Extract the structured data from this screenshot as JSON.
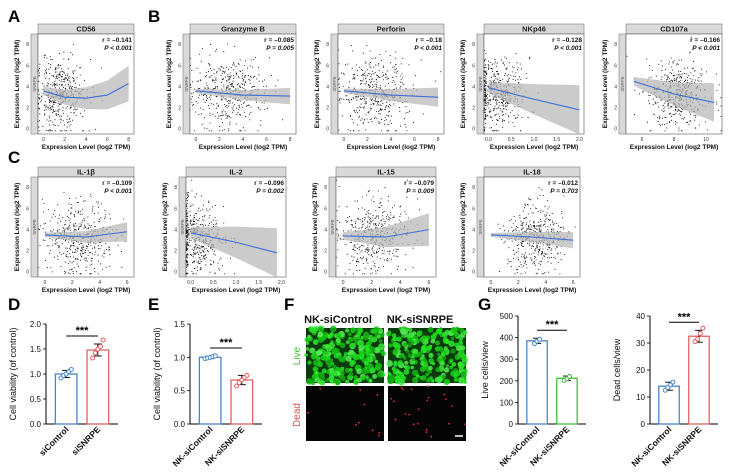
{
  "panel_labels": [
    "A",
    "B",
    "C",
    "D",
    "E",
    "F",
    "G"
  ],
  "scatter": {
    "xlabel": "Expression Level (log2 TPM)",
    "ylabel": "Expression Level (log2 TPM)",
    "side_label": "SNRPE",
    "colors": {
      "point": "#111111",
      "line": "#3a6fd8",
      "band": "#b5b5b5"
    }
  },
  "chart_data": [
    {
      "type": "scatter",
      "id": "CD56",
      "title": "CD56",
      "r": "r = –0.141",
      "p": "P < 0.001",
      "xticks": [
        "0",
        "2",
        "4",
        "6",
        "8"
      ],
      "yticks": [
        "0",
        "2",
        "4",
        "6",
        "8"
      ],
      "xlim": [
        -0.5,
        8.5
      ],
      "ylim": [
        -0.5,
        9
      ],
      "cloud": {
        "cx": 1.6,
        "cy": 3.3,
        "sx": 1.2,
        "sy": 1.7
      },
      "trend": [
        [
          0,
          3.6
        ],
        [
          2,
          3.0
        ],
        [
          4,
          2.9
        ],
        [
          6,
          3.2
        ],
        [
          8,
          4.3
        ]
      ],
      "band": 1.3
    },
    {
      "type": "scatter",
      "id": "GZMB",
      "title": "Granzyme B",
      "r": "r = –0.085",
      "p": "P = 0.005",
      "xticks": [
        "0",
        "2",
        "4",
        "6",
        "8"
      ],
      "yticks": [
        "0",
        "2",
        "4",
        "6",
        "8"
      ],
      "xlim": [
        -0.5,
        8.5
      ],
      "ylim": [
        -0.5,
        9
      ],
      "cloud": {
        "cx": 2.8,
        "cy": 3.3,
        "sx": 1.7,
        "sy": 1.7
      },
      "trend": [
        [
          0,
          3.6
        ],
        [
          4,
          3.2
        ],
        [
          8,
          3.1
        ]
      ],
      "band": 0.6
    },
    {
      "type": "scatter",
      "id": "PRF1",
      "title": "Perforin",
      "r": "r = –0.18",
      "p": "P < 0.001",
      "xticks": [
        "0",
        "2",
        "4",
        "6",
        "8"
      ],
      "yticks": [
        "0",
        "2",
        "4",
        "6",
        "8"
      ],
      "xlim": [
        -0.5,
        8.5
      ],
      "ylim": [
        -0.5,
        9
      ],
      "cloud": {
        "cx": 2.6,
        "cy": 3.3,
        "sx": 1.6,
        "sy": 1.7
      },
      "trend": [
        [
          0,
          3.6
        ],
        [
          4,
          3.2
        ],
        [
          8,
          3.0
        ]
      ],
      "band": 0.7
    },
    {
      "type": "scatter",
      "id": "NKp46",
      "title": "NKp46",
      "r": "r = –0.128",
      "p": "P < 0.001",
      "xticks": [
        "0.0",
        "0.5",
        "1.0",
        "1.5",
        "2.0"
      ],
      "yticks": [
        "0",
        "2",
        "4",
        "6",
        "8"
      ],
      "xlim": [
        -0.1,
        2.1
      ],
      "ylim": [
        -0.5,
        9
      ],
      "cloud": {
        "cx": 0.15,
        "cy": 3.3,
        "sx": 0.3,
        "sy": 1.7
      },
      "trend": [
        [
          0,
          3.9
        ],
        [
          1,
          2.8
        ],
        [
          2,
          1.8
        ]
      ],
      "band": 1.8
    },
    {
      "type": "scatter",
      "id": "CD107a",
      "title": "CD107a",
      "r": "r = –0.166",
      "p": "P < 0.001",
      "xticks": [
        "6",
        "8",
        "10"
      ],
      "yticks": [
        "0",
        "2",
        "4",
        "6",
        "8"
      ],
      "xlim": [
        5,
        11
      ],
      "ylim": [
        -0.5,
        9
      ],
      "cloud": {
        "cx": 8.2,
        "cy": 3.3,
        "sx": 1.0,
        "sy": 1.7
      },
      "trend": [
        [
          5.5,
          4.5
        ],
        [
          8,
          3.3
        ],
        [
          10.5,
          2.5
        ]
      ],
      "band": 1.4
    },
    {
      "type": "scatter",
      "id": "IL1B",
      "title": "IL-1β",
      "r": "r = –0.109",
      "p": "P < 0.001",
      "xticks": [
        "0",
        "2",
        "4",
        "6"
      ],
      "yticks": [
        "0",
        "2",
        "4",
        "6",
        "8"
      ],
      "xlim": [
        -0.5,
        6.5
      ],
      "ylim": [
        -0.5,
        9
      ],
      "cloud": {
        "cx": 2.5,
        "cy": 3.3,
        "sx": 1.3,
        "sy": 1.7
      },
      "trend": [
        [
          0,
          3.5
        ],
        [
          3,
          3.3
        ],
        [
          6,
          3.8
        ]
      ],
      "band": 0.7
    },
    {
      "type": "scatter",
      "id": "IL2",
      "title": "IL-2",
      "r": "r = –0.096",
      "p": "P = 0.002",
      "xticks": [
        "0.0",
        "0.5",
        "1.0",
        "1.5",
        "2.0"
      ],
      "yticks": [
        "0",
        "2",
        "4",
        "6",
        "8"
      ],
      "xlim": [
        -0.1,
        2.1
      ],
      "ylim": [
        -0.5,
        9
      ],
      "cloud": {
        "cx": 0.15,
        "cy": 3.3,
        "sx": 0.3,
        "sy": 1.7
      },
      "trend": [
        [
          0,
          3.7
        ],
        [
          1,
          2.8
        ],
        [
          1.9,
          1.8
        ]
      ],
      "band": 1.8
    },
    {
      "type": "scatter",
      "id": "IL15",
      "title": "IL-15",
      "r": "r = –0.079",
      "p": "P = 0.009",
      "xticks": [
        "0",
        "2",
        "4",
        "6"
      ],
      "yticks": [
        "0",
        "2",
        "4",
        "6",
        "8"
      ],
      "xlim": [
        -0.5,
        6.5
      ],
      "ylim": [
        -0.5,
        9
      ],
      "cloud": {
        "cx": 2.2,
        "cy": 3.3,
        "sx": 1.2,
        "sy": 1.7
      },
      "trend": [
        [
          0,
          3.4
        ],
        [
          3,
          3.3
        ],
        [
          6,
          4.0
        ]
      ],
      "band": 1.2
    },
    {
      "type": "scatter",
      "id": "IL18",
      "title": "IL-18",
      "r": "r = –0.012",
      "p": "P = 0.703",
      "xticks": [
        "0",
        "2",
        "4",
        "6"
      ],
      "yticks": [
        "0",
        "2",
        "4",
        "6",
        "8"
      ],
      "xlim": [
        -0.5,
        6.5
      ],
      "ylim": [
        -0.5,
        9
      ],
      "cloud": {
        "cx": 3.2,
        "cy": 3.3,
        "sx": 1.1,
        "sy": 1.6
      },
      "trend": [
        [
          0,
          3.5
        ],
        [
          3,
          3.3
        ],
        [
          6,
          3.0
        ]
      ],
      "band": 0.6
    },
    {
      "type": "bar",
      "id": "D",
      "ylabel": "Cell viability (of control)",
      "categories": [
        "siControl",
        "siSNRPE"
      ],
      "values": [
        1.0,
        1.48
      ],
      "errors": [
        0.07,
        0.12
      ],
      "points": [
        [
          0.92,
          0.97,
          1.0,
          1.05,
          1.09
        ],
        [
          1.32,
          1.42,
          1.5,
          1.55,
          1.68
        ]
      ],
      "ylim": [
        0,
        2.0
      ],
      "yticks": [
        "0.0",
        "0.5",
        "1.0",
        "1.5",
        "2.0"
      ],
      "colors": [
        "#4a86c8",
        "#e06262"
      ],
      "sig": "***"
    },
    {
      "type": "bar",
      "id": "E",
      "ylabel": "Cell viability (of control)",
      "categories": [
        "NK-siControl",
        "NK-siSNRPE"
      ],
      "values": [
        1.0,
        0.66
      ],
      "errors": [
        0.02,
        0.07
      ],
      "points": [
        [
          0.98,
          0.99,
          1.0,
          1.01,
          1.02
        ],
        [
          0.57,
          0.62,
          0.66,
          0.7,
          0.73
        ]
      ],
      "ylim": [
        0,
        1.5
      ],
      "yticks": [
        "0.0",
        "0.5",
        "1.0",
        "1.5"
      ],
      "colors": [
        "#4a86c8",
        "#e06262"
      ],
      "sig": "***"
    },
    {
      "type": "bar",
      "id": "G1",
      "ylabel": "Live cells/view",
      "categories": [
        "NK-siControl",
        "NK-siSNRPE"
      ],
      "values": [
        385,
        212
      ],
      "errors": [
        12,
        10
      ],
      "points": [
        [
          372,
          383,
          392
        ],
        [
          202,
          210,
          220
        ]
      ],
      "ylim": [
        0,
        500
      ],
      "yticks": [
        "0",
        "100",
        "200",
        "300",
        "400",
        "500"
      ],
      "colors": [
        "#4a86c8",
        "#3fbf3f"
      ],
      "sig": "***"
    },
    {
      "type": "bar",
      "id": "G2",
      "ylabel": "Dead cells/view",
      "categories": [
        "NK-siControl",
        "NK-siSNRPE"
      ],
      "values": [
        14,
        32.5
      ],
      "errors": [
        1.5,
        2.2
      ],
      "points": [
        [
          12.5,
          13.5,
          14.5,
          15.5
        ],
        [
          30.5,
          31.5,
          33.5,
          35.5
        ]
      ],
      "ylim": [
        0,
        40
      ],
      "yticks": [
        "0",
        "10",
        "20",
        "30",
        "40"
      ],
      "colors": [
        "#4a86c8",
        "#e06262"
      ],
      "sig": "***"
    }
  ],
  "microscopy": {
    "columns": [
      "NK-siControl",
      "NK-siSNRPE"
    ],
    "rows": [
      "Live",
      "Dead"
    ]
  }
}
